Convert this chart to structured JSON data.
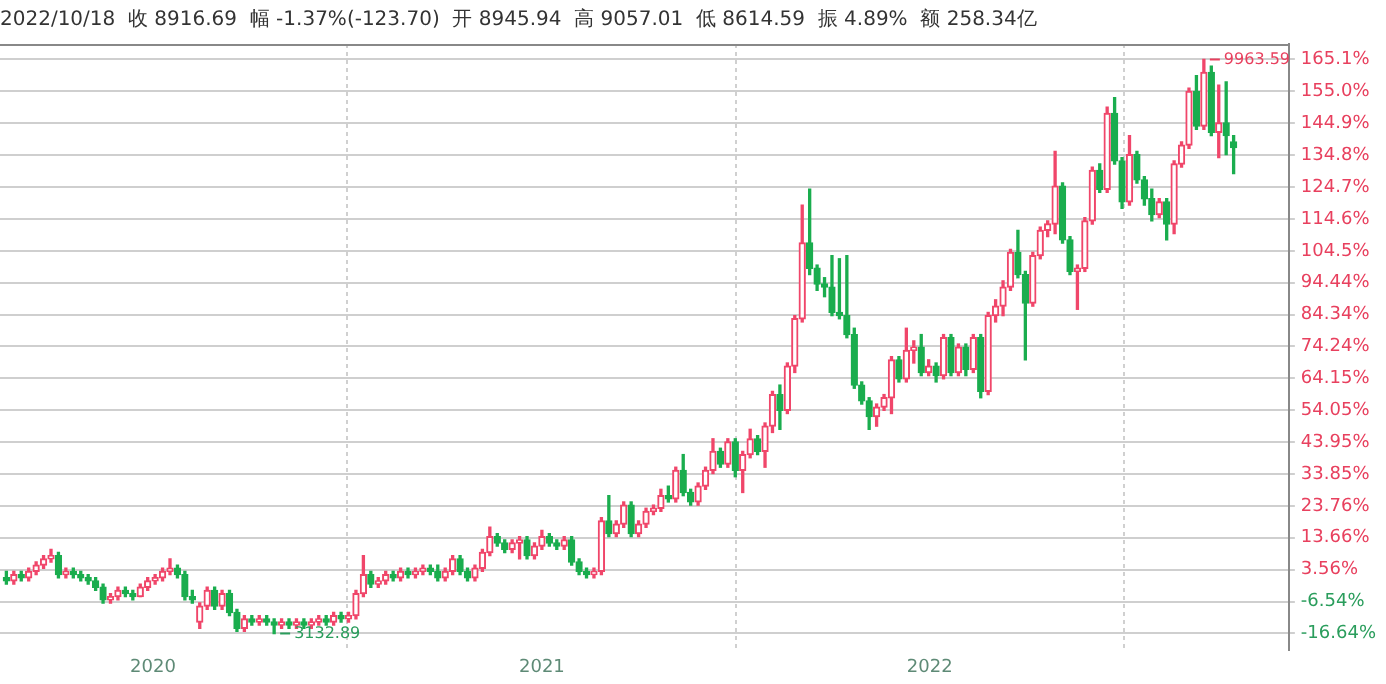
{
  "chart_data": {
    "type": "candlestick",
    "title": "2022/10/18  收 8916.69  幅 -1.37%(-123.70)  开 8945.94  高 9057.01  低 8614.59  振 4.89%  额 258.34亿",
    "x": [
      "2019-08-16",
      "2019-08-23",
      "2019-08-30",
      "2019-09-06",
      "2019-09-13",
      "2019-09-20",
      "2019-09-27",
      "2019-10-04",
      "2019-10-11",
      "2019-10-18",
      "2019-10-25",
      "2019-11-01",
      "2019-11-08",
      "2019-11-15",
      "2019-11-22",
      "2019-11-29",
      "2019-12-06",
      "2019-12-13",
      "2019-12-20",
      "2019-12-27",
      "2020-01-03",
      "2020-01-10",
      "2020-01-17",
      "2020-01-24",
      "2020-01-31",
      "2020-02-07",
      "2020-02-14",
      "2020-02-21",
      "2020-02-28",
      "2020-03-06",
      "2020-03-13",
      "2020-03-20",
      "2020-03-27",
      "2020-04-03",
      "2020-04-10",
      "2020-04-17",
      "2020-04-24",
      "2020-05-01",
      "2020-05-08",
      "2020-05-15",
      "2020-05-22",
      "2020-05-29",
      "2020-06-05",
      "2020-06-12",
      "2020-06-19",
      "2020-06-26",
      "2020-07-03",
      "2020-07-10",
      "2020-07-17",
      "2020-07-24",
      "2020-07-31",
      "2020-08-07",
      "2020-08-14",
      "2020-08-21",
      "2020-08-28",
      "2020-09-04",
      "2020-09-11",
      "2020-09-18",
      "2020-09-25",
      "2020-10-02",
      "2020-10-09",
      "2020-10-16",
      "2020-10-23",
      "2020-10-30",
      "2020-11-06",
      "2020-11-13",
      "2020-11-20",
      "2020-11-27",
      "2020-12-04",
      "2020-12-11",
      "2020-12-18",
      "2020-12-25",
      "2021-01-01",
      "2021-01-08",
      "2021-01-15",
      "2021-01-22",
      "2021-01-29",
      "2021-02-05",
      "2021-02-12",
      "2021-02-19",
      "2021-02-26",
      "2021-03-05",
      "2021-03-12",
      "2021-03-19",
      "2021-03-26",
      "2021-04-02",
      "2021-04-09",
      "2021-04-16",
      "2021-04-23",
      "2021-04-30",
      "2021-05-07",
      "2021-05-14",
      "2021-05-21",
      "2021-05-28",
      "2021-06-04",
      "2021-06-11",
      "2021-06-18",
      "2021-06-25",
      "2021-07-02",
      "2021-07-09",
      "2021-07-16",
      "2021-07-23",
      "2021-07-30",
      "2021-08-06",
      "2021-08-13",
      "2021-08-20",
      "2021-08-27",
      "2021-09-03",
      "2021-09-10",
      "2021-09-17",
      "2021-09-24",
      "2021-10-01",
      "2021-10-08",
      "2021-10-15",
      "2021-10-22",
      "2021-10-29",
      "2021-11-05",
      "2021-11-12",
      "2021-11-19",
      "2021-11-26",
      "2021-12-03",
      "2021-12-10",
      "2021-12-17",
      "2021-12-24",
      "2021-12-31",
      "2022-01-07",
      "2022-01-14",
      "2022-01-21",
      "2022-01-28",
      "2022-02-04",
      "2022-02-11",
      "2022-02-18",
      "2022-02-25",
      "2022-03-04",
      "2022-03-11",
      "2022-03-18",
      "2022-03-25",
      "2022-04-01",
      "2022-04-08",
      "2022-04-15",
      "2022-04-22",
      "2022-04-29",
      "2022-05-06",
      "2022-05-13",
      "2022-05-20",
      "2022-05-27",
      "2022-06-03",
      "2022-06-10",
      "2022-06-17",
      "2022-06-24",
      "2022-07-01",
      "2022-07-08",
      "2022-07-15",
      "2022-07-22",
      "2022-07-29",
      "2022-08-05",
      "2022-08-12",
      "2022-08-19",
      "2022-08-26",
      "2022-09-02",
      "2022-09-09",
      "2022-09-16",
      "2022-09-23",
      "2022-09-30",
      "2022-10-07",
      "2022-10-14"
    ],
    "ohlc": [
      [
        1,
        3,
        -1,
        0
      ],
      [
        0,
        3,
        -1,
        2
      ],
      [
        2,
        3,
        0,
        1
      ],
      [
        1,
        4,
        0,
        3
      ],
      [
        3,
        6,
        2,
        5
      ],
      [
        5,
        8,
        4,
        7
      ],
      [
        7,
        10,
        6,
        8
      ],
      [
        8,
        9,
        1,
        2
      ],
      [
        2,
        4,
        1,
        3
      ],
      [
        3,
        4,
        1,
        2
      ],
      [
        2,
        3,
        0,
        1
      ],
      [
        1,
        2,
        -1,
        0
      ],
      [
        0,
        1,
        -3,
        -2
      ],
      [
        -2,
        -1,
        -7,
        -6
      ],
      [
        -6,
        -4,
        -7,
        -5
      ],
      [
        -5,
        -2,
        -6,
        -3
      ],
      [
        -3,
        -2,
        -5,
        -4
      ],
      [
        -4,
        -3,
        -6,
        -5
      ],
      [
        -5,
        -1,
        -5,
        -2
      ],
      [
        -2,
        1,
        -3,
        0
      ],
      [
        0,
        2,
        -1,
        1
      ],
      [
        1,
        4,
        0,
        3
      ],
      [
        3,
        7,
        2,
        4
      ],
      [
        4,
        5,
        1,
        2
      ],
      [
        2,
        3,
        -6,
        -5
      ],
      [
        -5,
        -3,
        -7,
        -6
      ],
      [
        -13,
        -7,
        -15,
        -8
      ],
      [
        -8,
        -2,
        -9,
        -3
      ],
      [
        -3,
        -2,
        -9,
        -8
      ],
      [
        -8,
        -3,
        -9,
        -4
      ],
      [
        -4,
        -3,
        -11,
        -10
      ],
      [
        -10,
        -9,
        -16,
        -15
      ],
      [
        -15,
        -11,
        -16,
        -12
      ],
      [
        -12,
        -11,
        -14,
        -13
      ],
      [
        -13,
        -11,
        -14,
        -12
      ],
      [
        -12,
        -11,
        -14,
        -13
      ],
      [
        -13,
        -12,
        -16.64,
        -14
      ],
      [
        -14,
        -12,
        -15,
        -13
      ],
      [
        -13,
        -12,
        -15,
        -14
      ],
      [
        -14,
        -12,
        -15,
        -13
      ],
      [
        -13,
        -12,
        -15,
        -14
      ],
      [
        -14,
        -12,
        -15,
        -13
      ],
      [
        -13,
        -11,
        -14,
        -12
      ],
      [
        -12,
        -11,
        -14,
        -13
      ],
      [
        -13,
        -10,
        -14,
        -11
      ],
      [
        -11,
        -10,
        -13,
        -12
      ],
      [
        -12,
        -10,
        -13,
        -11
      ],
      [
        -11,
        -3,
        -12,
        -4
      ],
      [
        -4,
        8,
        -5,
        2
      ],
      [
        2,
        3,
        -2,
        -1
      ],
      [
        -1,
        1,
        -2,
        0
      ],
      [
        0,
        3,
        -1,
        2
      ],
      [
        2,
        3,
        0,
        1
      ],
      [
        1,
        4,
        0,
        3
      ],
      [
        3,
        4,
        1,
        2
      ],
      [
        2,
        4,
        1,
        3
      ],
      [
        3,
        5,
        2,
        4
      ],
      [
        4,
        5,
        2,
        3
      ],
      [
        3,
        5,
        0,
        1
      ],
      [
        1,
        4,
        0,
        3
      ],
      [
        3,
        8,
        2,
        7
      ],
      [
        7,
        8,
        2,
        3
      ],
      [
        3,
        4,
        0,
        1
      ],
      [
        1,
        5,
        0,
        4
      ],
      [
        4,
        10,
        3,
        9
      ],
      [
        9,
        17,
        8,
        14
      ],
      [
        14,
        15,
        11,
        12
      ],
      [
        12,
        13,
        9,
        10
      ],
      [
        10,
        13,
        9,
        12
      ],
      [
        12,
        14,
        7,
        13
      ],
      [
        13,
        14,
        7,
        8
      ],
      [
        8,
        12,
        7,
        11
      ],
      [
        11,
        16,
        10,
        14
      ],
      [
        14,
        15,
        11,
        12
      ],
      [
        12,
        13,
        10,
        11
      ],
      [
        11,
        14,
        10,
        13
      ],
      [
        13,
        14,
        5,
        6
      ],
      [
        6,
        7,
        2,
        3
      ],
      [
        3,
        4,
        1,
        2
      ],
      [
        2,
        4,
        1,
        3
      ],
      [
        3,
        20,
        2,
        19
      ],
      [
        19,
        27,
        14,
        15
      ],
      [
        15,
        19,
        14,
        18
      ],
      [
        18,
        25,
        17,
        24
      ],
      [
        24,
        25,
        14,
        15
      ],
      [
        15,
        19,
        14,
        18
      ],
      [
        18,
        23,
        17,
        22
      ],
      [
        22,
        24,
        21,
        23
      ],
      [
        23,
        29,
        22,
        27
      ],
      [
        27,
        30,
        25,
        26
      ],
      [
        26,
        36,
        25,
        35
      ],
      [
        35,
        40,
        27,
        28
      ],
      [
        28,
        29,
        24,
        25
      ],
      [
        25,
        31,
        24,
        30
      ],
      [
        30,
        36,
        29,
        35
      ],
      [
        35,
        45,
        34,
        41
      ],
      [
        41,
        42,
        36,
        37
      ],
      [
        37,
        45,
        36,
        44
      ],
      [
        44,
        45,
        33,
        35
      ],
      [
        35,
        41,
        28,
        40
      ],
      [
        40,
        48,
        39,
        45
      ],
      [
        45,
        46,
        40,
        41
      ],
      [
        41,
        50,
        36,
        49
      ],
      [
        49,
        60,
        47,
        59
      ],
      [
        59,
        62,
        48,
        54
      ],
      [
        54,
        69,
        53,
        68
      ],
      [
        68,
        84,
        66,
        83
      ],
      [
        83,
        119,
        82,
        107
      ],
      [
        107,
        124,
        97,
        99
      ],
      [
        99,
        100,
        92,
        94
      ],
      [
        94,
        96,
        90,
        93
      ],
      [
        93,
        103,
        84,
        85
      ],
      [
        85,
        102,
        83,
        84
      ],
      [
        84,
        103,
        77,
        78
      ],
      [
        78,
        80,
        61,
        62
      ],
      [
        62,
        63,
        56,
        57
      ],
      [
        57,
        58,
        48,
        52
      ],
      [
        52,
        56,
        49,
        55
      ],
      [
        55,
        59,
        54,
        58
      ],
      [
        58,
        71,
        53,
        70
      ],
      [
        70,
        71,
        63,
        64
      ],
      [
        64,
        80,
        63,
        73
      ],
      [
        73,
        76,
        69,
        74
      ],
      [
        74,
        78,
        65,
        66
      ],
      [
        66,
        70,
        65,
        68
      ],
      [
        68,
        69,
        63,
        65
      ],
      [
        65,
        78,
        64,
        77
      ],
      [
        77,
        78,
        65,
        66
      ],
      [
        66,
        75,
        65,
        74
      ],
      [
        74,
        75,
        65,
        67
      ],
      [
        67,
        78,
        66,
        77
      ],
      [
        77,
        78,
        58,
        60
      ],
      [
        60,
        85,
        59,
        84
      ],
      [
        84,
        89,
        82,
        87
      ],
      [
        87,
        95,
        84,
        93
      ],
      [
        93,
        105,
        92,
        104
      ],
      [
        104,
        111,
        96,
        97
      ],
      [
        97,
        98,
        70,
        88
      ],
      [
        88,
        104,
        87,
        103
      ],
      [
        103,
        112,
        102,
        111
      ],
      [
        111,
        114,
        109,
        113
      ],
      [
        113,
        136,
        110,
        125
      ],
      [
        125,
        126,
        107,
        108
      ],
      [
        108,
        109,
        97,
        98
      ],
      [
        98,
        100,
        86,
        99
      ],
      [
        99,
        115,
        98,
        114
      ],
      [
        114,
        131,
        113,
        130
      ],
      [
        130,
        132,
        123,
        124
      ],
      [
        124,
        150,
        123,
        148
      ],
      [
        148,
        153,
        132,
        133
      ],
      [
        133,
        134,
        118,
        120
      ],
      [
        120,
        141,
        119,
        135
      ],
      [
        135,
        136,
        126,
        127
      ],
      [
        127,
        128,
        119,
        121
      ],
      [
        121,
        124,
        114,
        116
      ],
      [
        116,
        121,
        115,
        120
      ],
      [
        120,
        121,
        108,
        113
      ],
      [
        113,
        133,
        110,
        132
      ],
      [
        132,
        139,
        131,
        138
      ],
      [
        138,
        156,
        137,
        155
      ],
      [
        155,
        160,
        143,
        144
      ],
      [
        144,
        165.1,
        143,
        161
      ],
      [
        161,
        163,
        141,
        142
      ],
      [
        142,
        157,
        134,
        145
      ],
      [
        145,
        158,
        135,
        141
      ],
      [
        139,
        141,
        129,
        137.2
      ]
    ],
    "colors": [
      "#1aad4e",
      "#f0466a",
      "#1aad4e",
      "#f0466a",
      "#f0466a",
      "#f0466a",
      "#f0466a",
      "#1aad4e",
      "#f0466a",
      "#1aad4e",
      "#1aad4e",
      "#1aad4e",
      "#1aad4e",
      "#1aad4e",
      "#f0466a",
      "#f0466a",
      "#1aad4e",
      "#1aad4e",
      "#f0466a",
      "#f0466a",
      "#f0466a",
      "#f0466a",
      "#f0466a",
      "#1aad4e",
      "#1aad4e",
      "#1aad4e",
      "#f0466a",
      "#f0466a",
      "#1aad4e",
      "#f0466a",
      "#1aad4e",
      "#1aad4e",
      "#f0466a",
      "#1aad4e",
      "#f0466a",
      "#1aad4e",
      "#1aad4e",
      "#f0466a",
      "#1aad4e",
      "#f0466a",
      "#1aad4e",
      "#f0466a",
      "#f0466a",
      "#1aad4e",
      "#f0466a",
      "#1aad4e",
      "#f0466a",
      "#f0466a",
      "#f0466a",
      "#1aad4e",
      "#f0466a",
      "#f0466a",
      "#1aad4e",
      "#f0466a",
      "#1aad4e",
      "#f0466a",
      "#f0466a",
      "#1aad4e",
      "#1aad4e",
      "#f0466a",
      "#f0466a",
      "#1aad4e",
      "#1aad4e",
      "#f0466a",
      "#f0466a",
      "#f0466a",
      "#1aad4e",
      "#1aad4e",
      "#f0466a",
      "#f0466a",
      "#1aad4e",
      "#f0466a",
      "#f0466a",
      "#1aad4e",
      "#1aad4e",
      "#f0466a",
      "#1aad4e",
      "#1aad4e",
      "#1aad4e",
      "#f0466a",
      "#f0466a",
      "#1aad4e",
      "#f0466a",
      "#f0466a",
      "#1aad4e",
      "#f0466a",
      "#f0466a",
      "#f0466a",
      "#f0466a",
      "#1aad4e",
      "#f0466a",
      "#1aad4e",
      "#1aad4e",
      "#f0466a",
      "#f0466a",
      "#f0466a",
      "#1aad4e",
      "#f0466a",
      "#1aad4e",
      "#f0466a",
      "#f0466a",
      "#1aad4e",
      "#f0466a",
      "#f0466a",
      "#1aad4e",
      "#f0466a",
      "#f0466a",
      "#f0466a",
      "#1aad4e",
      "#1aad4e",
      "#1aad4e",
      "#1aad4e",
      "#1aad4e",
      "#1aad4e",
      "#1aad4e",
      "#1aad4e",
      "#1aad4e",
      "#f0466a",
      "#f0466a",
      "#f0466a",
      "#1aad4e",
      "#f0466a",
      "#f0466a",
      "#1aad4e",
      "#f0466a",
      "#1aad4e",
      "#f0466a",
      "#1aad4e",
      "#f0466a",
      "#1aad4e",
      "#f0466a",
      "#1aad4e",
      "#f0466a",
      "#f0466a",
      "#f0466a",
      "#f0466a",
      "#1aad4e",
      "#1aad4e",
      "#f0466a",
      "#f0466a",
      "#f0466a",
      "#f0466a",
      "#1aad4e",
      "#1aad4e",
      "#f0466a",
      "#f0466a",
      "#f0466a",
      "#1aad4e",
      "#f0466a",
      "#1aad4e",
      "#1aad4e",
      "#f0466a",
      "#1aad4e",
      "#1aad4e",
      "#1aad4e",
      "#f0466a",
      "#1aad4e",
      "#f0466a",
      "#f0466a",
      "#f0466a",
      "#1aad4e",
      "#f0466a",
      "#1aad4e",
      "#f0466a",
      "#1aad4e",
      "#1aad4e"
    ],
    "xlim": [
      "2019-08-10",
      "2022-12-05"
    ],
    "xticks": [
      {
        "value": "2020",
        "label": "2020"
      },
      {
        "value": "2021",
        "label": "2021"
      },
      {
        "value": "2022",
        "label": "2022"
      }
    ],
    "ylim": [
      -22,
      170
    ],
    "yticks": [
      {
        "value": 165.1,
        "label": "165.1%"
      },
      {
        "value": 155.0,
        "label": "155.0%"
      },
      {
        "value": 144.9,
        "label": "144.9%"
      },
      {
        "value": 134.8,
        "label": "134.8%"
      },
      {
        "value": 124.7,
        "label": "124.7%"
      },
      {
        "value": 114.6,
        "label": "114.6%"
      },
      {
        "value": 104.5,
        "label": "104.5%"
      },
      {
        "value": 94.44,
        "label": "94.44%"
      },
      {
        "value": 84.34,
        "label": "84.34%"
      },
      {
        "value": 74.24,
        "label": "74.24%"
      },
      {
        "value": 64.15,
        "label": "64.15%"
      },
      {
        "value": 54.05,
        "label": "54.05%"
      },
      {
        "value": 43.95,
        "label": "43.95%"
      },
      {
        "value": 33.85,
        "label": "33.85%"
      },
      {
        "value": 23.76,
        "label": "23.76%"
      },
      {
        "value": 13.66,
        "label": "13.66%"
      },
      {
        "value": 3.56,
        "label": "3.56%"
      },
      {
        "value": -6.54,
        "label": "-6.54%"
      },
      {
        "value": -16.64,
        "label": "-16.64%"
      }
    ],
    "grid": true,
    "annotations": [
      {
        "text": "9963.59",
        "x": "2022-09-16",
        "y": 165.1
      },
      {
        "text": "3132.89",
        "x": "2020-04-24",
        "y": -16.64
      }
    ]
  }
}
